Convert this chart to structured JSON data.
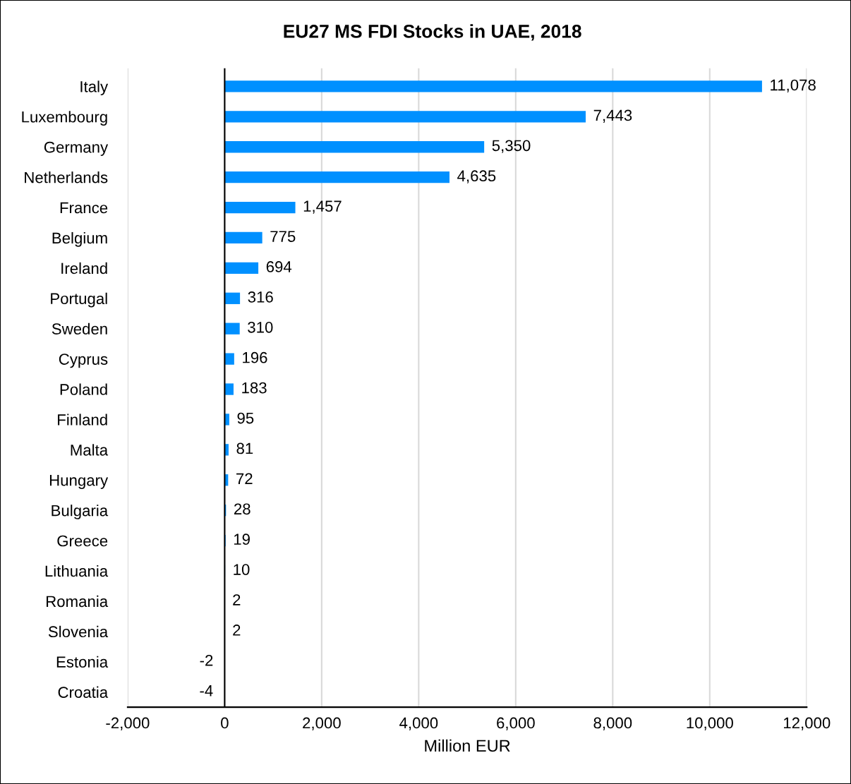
{
  "chart_data": {
    "type": "bar",
    "orientation": "horizontal",
    "title": "EU27 MS FDI Stocks in UAE, 2018",
    "xlabel": "Million EUR",
    "categories": [
      "Italy",
      "Luxembourg",
      "Germany",
      "Netherlands",
      "France",
      "Belgium",
      "Ireland",
      "Portugal",
      "Sweden",
      "Cyprus",
      "Poland",
      "Finland",
      "Malta",
      "Hungary",
      "Bulgaria",
      "Greece",
      "Lithuania",
      "Romania",
      "Slovenia",
      "Estonia",
      "Croatia"
    ],
    "values": [
      11078,
      7443,
      5350,
      4635,
      1457,
      775,
      694,
      316,
      310,
      196,
      183,
      95,
      81,
      72,
      28,
      19,
      10,
      2,
      2,
      -2,
      -4
    ],
    "value_labels": [
      "11,078",
      "7,443",
      "5,350",
      "4,635",
      "1,457",
      "775",
      "694",
      "316",
      "310",
      "196",
      "183",
      "95",
      "81",
      "72",
      "28",
      "19",
      "10",
      "2",
      "2",
      "-2",
      "-4"
    ],
    "color": "#0090ff",
    "xlim": [
      -2000,
      12000
    ],
    "xticks": [
      {
        "value": -2000,
        "label": "-2,000"
      },
      0,
      {
        "value": 2000,
        "label": "2,000"
      },
      {
        "value": 4000,
        "label": "4,000"
      },
      {
        "value": 6000,
        "label": "6,000"
      },
      {
        "value": 8000,
        "label": "8,000"
      },
      {
        "value": 10000,
        "label": "10,000"
      },
      {
        "value": 12000,
        "label": "12,000"
      }
    ],
    "grid": "x"
  }
}
